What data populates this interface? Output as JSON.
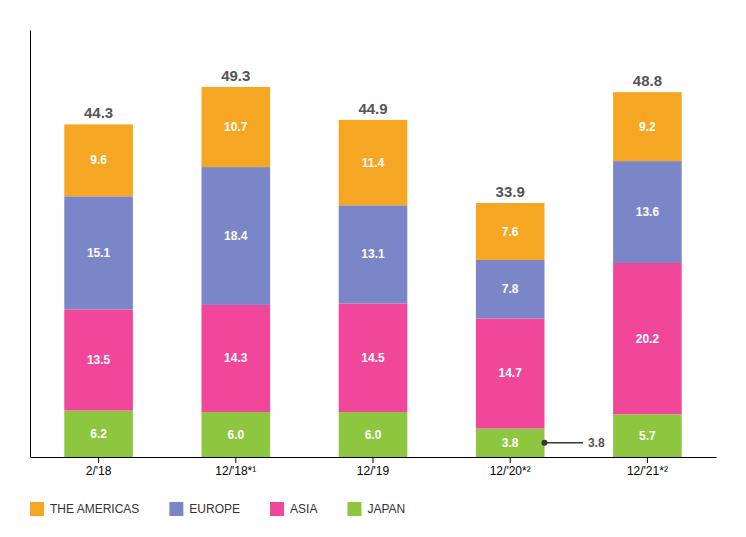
{
  "chart_data": {
    "type": "bar",
    "stacked": true,
    "categories": [
      "2/'18",
      "12/'18*¹",
      "12/'19",
      "12/'20*²",
      "12/'21*²"
    ],
    "series": [
      {
        "name": "JAPAN",
        "color": "#8dc63f",
        "values": [
          6.2,
          6.0,
          6.0,
          3.8,
          5.7
        ],
        "value_labels": [
          "6.2",
          "6.0",
          "6.0",
          "3.8",
          "5.7"
        ]
      },
      {
        "name": "ASIA",
        "color": "#f0479a",
        "values": [
          13.5,
          14.3,
          14.5,
          14.7,
          20.2
        ],
        "value_labels": [
          "13.5",
          "14.3",
          "14.5",
          "14.7",
          "20.2"
        ]
      },
      {
        "name": "EUROPE",
        "color": "#7b86c8",
        "values": [
          15.1,
          18.4,
          13.1,
          7.8,
          13.6
        ],
        "value_labels": [
          "15.1",
          "18.4",
          "13.1",
          "7.8",
          "13.6"
        ]
      },
      {
        "name": "THE AMERICAS",
        "color": "#f5a623",
        "values": [
          9.6,
          10.7,
          11.4,
          7.6,
          9.2
        ],
        "value_labels": [
          "9.6",
          "10.7",
          "11.4",
          "7.6",
          "9.2"
        ]
      }
    ],
    "totals": [
      44.3,
      49.3,
      44.9,
      33.9,
      48.8
    ],
    "annotations": [
      {
        "text": "3.8",
        "series": "JAPAN",
        "category": "12/'20*²"
      }
    ],
    "ylim": [
      0,
      57
    ],
    "data_labels": true,
    "legend": "bottom",
    "tick_labels": "x",
    "grid": false
  }
}
